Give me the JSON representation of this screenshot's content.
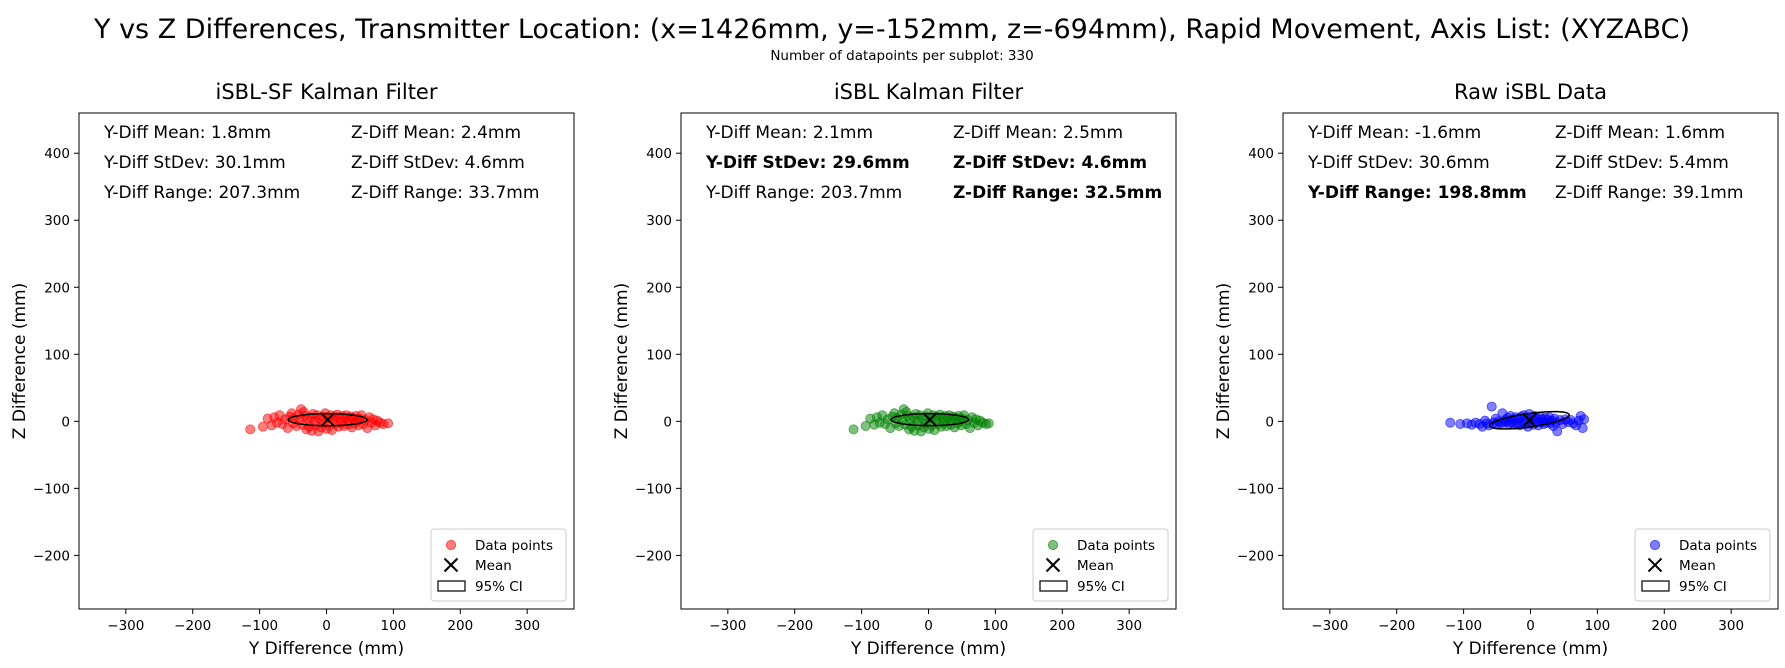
{
  "figure": {
    "title": "Y vs Z Differences, Transmitter Location: (x=1426mm, y=-152mm, z=-694mm), Rapid Movement, Axis List: (XYZABC)",
    "subtitle": "Number of datapoints per subplot: 330"
  },
  "chart_data": [
    {
      "type": "scatter",
      "title": "iSBL-SF Kalman Filter",
      "xlabel": "Y Difference (mm)",
      "ylabel": "Z Difference (mm)",
      "xlim": [
        -370,
        370
      ],
      "ylim": [
        -280,
        460
      ],
      "xticks": [
        -300,
        -200,
        -100,
        0,
        100,
        200,
        300
      ],
      "yticks": [
        -200,
        -100,
        0,
        100,
        200,
        300,
        400
      ],
      "grid": false,
      "legend_position": "bottom-right",
      "color": "#ff0000",
      "series": [
        {
          "name": "Data points",
          "marker": "circle"
        }
      ],
      "mean": {
        "name": "Mean",
        "x": 1.8,
        "y": 2.4
      },
      "ellipse": {
        "name": "95% CI",
        "center": [
          1.8,
          2.4
        ],
        "semi_x": 59,
        "semi_y": 9
      },
      "stats": [
        {
          "text": "Y-Diff Mean: 1.8mm",
          "bold": false
        },
        {
          "text": "Z-Diff Mean: 2.4mm",
          "bold": false
        },
        {
          "text": "Y-Diff StDev: 30.1mm",
          "bold": false
        },
        {
          "text": "Z-Diff StDev: 4.6mm",
          "bold": false
        },
        {
          "text": "Y-Diff Range: 207.3mm",
          "bold": false
        },
        {
          "text": "Z-Diff Range: 33.7mm",
          "bold": false
        }
      ],
      "points": [
        [
          -114,
          -12
        ],
        [
          -95,
          -8
        ],
        [
          -88,
          4
        ],
        [
          -82,
          -6
        ],
        [
          -78,
          6
        ],
        [
          -74,
          -2
        ],
        [
          -70,
          9
        ],
        [
          -66,
          -4
        ],
        [
          -62,
          3
        ],
        [
          -58,
          -10
        ],
        [
          -55,
          7
        ],
        [
          -52,
          12
        ],
        [
          -50,
          -3
        ],
        [
          -48,
          5
        ],
        [
          -45,
          -7
        ],
        [
          -42,
          10
        ],
        [
          -40,
          2
        ],
        [
          -38,
          18
        ],
        [
          -36,
          -5
        ],
        [
          -34,
          14
        ],
        [
          -32,
          8
        ],
        [
          -30,
          -12
        ],
        [
          -28,
          3
        ],
        [
          -26,
          -8
        ],
        [
          -24,
          6
        ],
        [
          -22,
          -14
        ],
        [
          -20,
          11
        ],
        [
          -18,
          0
        ],
        [
          -16,
          -6
        ],
        [
          -14,
          9
        ],
        [
          -12,
          -15
        ],
        [
          -10,
          4
        ],
        [
          -8,
          -9
        ],
        [
          -6,
          7
        ],
        [
          -4,
          -3
        ],
        [
          -2,
          12
        ],
        [
          0,
          -11
        ],
        [
          2,
          5
        ],
        [
          4,
          -6
        ],
        [
          6,
          9
        ],
        [
          8,
          -13
        ],
        [
          10,
          3
        ],
        [
          12,
          7
        ],
        [
          14,
          -4
        ],
        [
          16,
          10
        ],
        [
          18,
          -8
        ],
        [
          20,
          6
        ],
        [
          22,
          -2
        ],
        [
          24,
          8
        ],
        [
          26,
          -7
        ],
        [
          28,
          4
        ],
        [
          30,
          9
        ],
        [
          32,
          -5
        ],
        [
          34,
          2
        ],
        [
          36,
          7
        ],
        [
          38,
          -9
        ],
        [
          40,
          5
        ],
        [
          42,
          -3
        ],
        [
          44,
          8
        ],
        [
          46,
          1
        ],
        [
          48,
          -6
        ],
        [
          50,
          4
        ],
        [
          52,
          9
        ],
        [
          55,
          -4
        ],
        [
          58,
          2
        ],
        [
          61,
          -10
        ],
        [
          64,
          6
        ],
        [
          67,
          -2
        ],
        [
          70,
          3
        ],
        [
          73,
          -6
        ],
        [
          76,
          1
        ],
        [
          80,
          -2
        ],
        [
          85,
          -4
        ],
        [
          92,
          -3
        ]
      ]
    },
    {
      "type": "scatter",
      "title": "iSBL Kalman Filter",
      "xlabel": "Y Difference (mm)",
      "ylabel": "Z Difference (mm)",
      "xlim": [
        -370,
        370
      ],
      "ylim": [
        -280,
        460
      ],
      "xticks": [
        -300,
        -200,
        -100,
        0,
        100,
        200,
        300
      ],
      "yticks": [
        -200,
        -100,
        0,
        100,
        200,
        300,
        400
      ],
      "grid": false,
      "legend_position": "bottom-right",
      "color": "#008000",
      "series": [
        {
          "name": "Data points",
          "marker": "circle"
        }
      ],
      "mean": {
        "name": "Mean",
        "x": 2.1,
        "y": 2.5
      },
      "ellipse": {
        "name": "95% CI",
        "center": [
          2.1,
          2.5
        ],
        "semi_x": 58,
        "semi_y": 9
      },
      "stats": [
        {
          "text": "Y-Diff Mean: 2.1mm",
          "bold": false
        },
        {
          "text": "Z-Diff Mean: 2.5mm",
          "bold": false
        },
        {
          "text": "Y-Diff StDev: 29.6mm",
          "bold": true
        },
        {
          "text": "Z-Diff StDev: 4.6mm",
          "bold": true
        },
        {
          "text": "Y-Diff Range: 203.7mm",
          "bold": false
        },
        {
          "text": "Z-Diff Range: 32.5mm",
          "bold": true
        }
      ],
      "points": [
        [
          -112,
          -12
        ],
        [
          -94,
          -7
        ],
        [
          -87,
          4
        ],
        [
          -81,
          -5
        ],
        [
          -77,
          6
        ],
        [
          -73,
          -2
        ],
        [
          -69,
          9
        ],
        [
          -65,
          -4
        ],
        [
          -61,
          3
        ],
        [
          -57,
          -10
        ],
        [
          -54,
          7
        ],
        [
          -51,
          12
        ],
        [
          -49,
          -3
        ],
        [
          -47,
          5
        ],
        [
          -44,
          -7
        ],
        [
          -41,
          10
        ],
        [
          -39,
          2
        ],
        [
          -37,
          18
        ],
        [
          -35,
          -5
        ],
        [
          -33,
          14
        ],
        [
          -31,
          8
        ],
        [
          -29,
          -12
        ],
        [
          -27,
          3
        ],
        [
          -25,
          -8
        ],
        [
          -23,
          6
        ],
        [
          -21,
          -14
        ],
        [
          -19,
          11
        ],
        [
          -17,
          0
        ],
        [
          -15,
          -6
        ],
        [
          -13,
          9
        ],
        [
          -11,
          -15
        ],
        [
          -9,
          4
        ],
        [
          -7,
          -9
        ],
        [
          -5,
          7
        ],
        [
          -3,
          -3
        ],
        [
          -1,
          12
        ],
        [
          1,
          -11
        ],
        [
          3,
          5
        ],
        [
          5,
          -6
        ],
        [
          7,
          9
        ],
        [
          9,
          -13
        ],
        [
          11,
          3
        ],
        [
          13,
          7
        ],
        [
          15,
          -4
        ],
        [
          17,
          10
        ],
        [
          19,
          -8
        ],
        [
          21,
          6
        ],
        [
          23,
          -2
        ],
        [
          25,
          8
        ],
        [
          27,
          -7
        ],
        [
          29,
          4
        ],
        [
          31,
          9
        ],
        [
          33,
          -5
        ],
        [
          35,
          2
        ],
        [
          37,
          7
        ],
        [
          39,
          -9
        ],
        [
          41,
          5
        ],
        [
          43,
          -3
        ],
        [
          45,
          8
        ],
        [
          47,
          1
        ],
        [
          49,
          -6
        ],
        [
          51,
          4
        ],
        [
          53,
          9
        ],
        [
          56,
          -4
        ],
        [
          59,
          2
        ],
        [
          62,
          -10
        ],
        [
          65,
          6
        ],
        [
          68,
          -2
        ],
        [
          71,
          3
        ],
        [
          74,
          -6
        ],
        [
          77,
          1
        ],
        [
          81,
          -2
        ],
        [
          86,
          -4
        ],
        [
          90,
          -3
        ]
      ]
    },
    {
      "type": "scatter",
      "title": "Raw iSBL Data",
      "xlabel": "Y Difference (mm)",
      "ylabel": "Z Difference (mm)",
      "xlim": [
        -370,
        370
      ],
      "ylim": [
        -280,
        460
      ],
      "xticks": [
        -300,
        -200,
        -100,
        0,
        100,
        200,
        300
      ],
      "yticks": [
        -200,
        -100,
        0,
        100,
        200,
        300,
        400
      ],
      "grid": false,
      "legend_position": "bottom-right",
      "color": "#0000ff",
      "series": [
        {
          "name": "Data points",
          "marker": "circle"
        }
      ],
      "mean": {
        "name": "Mean",
        "x": -1.6,
        "y": 1.6
      },
      "ellipse": {
        "name": "95% CI",
        "center": [
          -1.6,
          1.6
        ],
        "semi_x": 60,
        "semi_y": 10,
        "angle_deg": -8
      },
      "stats": [
        {
          "text": "Y-Diff Mean: -1.6mm",
          "bold": false
        },
        {
          "text": "Z-Diff Mean: 1.6mm",
          "bold": false
        },
        {
          "text": "Y-Diff StDev: 30.6mm",
          "bold": false
        },
        {
          "text": "Z-Diff StDev: 5.4mm",
          "bold": false
        },
        {
          "text": "Y-Diff Range: 198.8mm",
          "bold": true
        },
        {
          "text": "Z-Diff Range: 39.1mm",
          "bold": false
        }
      ],
      "points": [
        [
          -120,
          -2
        ],
        [
          -105,
          -4
        ],
        [
          -95,
          -3
        ],
        [
          -88,
          -5
        ],
        [
          -82,
          -2
        ],
        [
          -76,
          -4
        ],
        [
          -72,
          -8
        ],
        [
          -68,
          1
        ],
        [
          -65,
          -3
        ],
        [
          -62,
          -6
        ],
        [
          -58,
          22
        ],
        [
          -55,
          -2
        ],
        [
          -52,
          4
        ],
        [
          -50,
          -4
        ],
        [
          -48,
          0
        ],
        [
          -45,
          -3
        ],
        [
          -42,
          12
        ],
        [
          -40,
          -2
        ],
        [
          -38,
          2
        ],
        [
          -36,
          -1
        ],
        [
          -34,
          5
        ],
        [
          -32,
          -4
        ],
        [
          -30,
          8
        ],
        [
          -28,
          -2
        ],
        [
          -26,
          3
        ],
        [
          -24,
          -5
        ],
        [
          -22,
          6
        ],
        [
          -20,
          -3
        ],
        [
          -18,
          4
        ],
        [
          -16,
          -6
        ],
        [
          -14,
          7
        ],
        [
          -12,
          -2
        ],
        [
          -10,
          9
        ],
        [
          -8,
          -4
        ],
        [
          -6,
          3
        ],
        [
          -4,
          -8
        ],
        [
          -2,
          11
        ],
        [
          0,
          -3
        ],
        [
          2,
          6
        ],
        [
          4,
          -5
        ],
        [
          6,
          8
        ],
        [
          8,
          -2
        ],
        [
          10,
          4
        ],
        [
          12,
          -6
        ],
        [
          14,
          7
        ],
        [
          16,
          -1
        ],
        [
          18,
          3
        ],
        [
          20,
          -4
        ],
        [
          22,
          5
        ],
        [
          24,
          -2
        ],
        [
          26,
          2
        ],
        [
          28,
          6
        ],
        [
          30,
          -3
        ],
        [
          32,
          1
        ],
        [
          34,
          -7
        ],
        [
          36,
          4
        ],
        [
          38,
          -2
        ],
        [
          40,
          -15
        ],
        [
          44,
          2
        ],
        [
          48,
          -4
        ],
        [
          52,
          3
        ],
        [
          56,
          -1
        ],
        [
          60,
          2
        ],
        [
          64,
          -3
        ],
        [
          68,
          -6
        ],
        [
          72,
          1
        ],
        [
          75,
          8
        ],
        [
          78,
          -10
        ],
        [
          80,
          3
        ]
      ]
    }
  ]
}
